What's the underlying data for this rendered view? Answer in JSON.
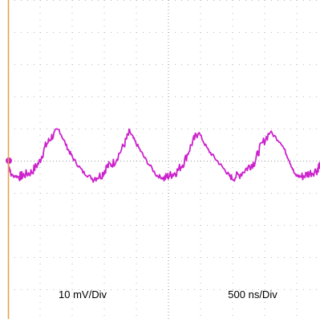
{
  "colors": {
    "trace": "#cc22cc",
    "grid": "#bbbbbb",
    "frame": "#e8a040",
    "background": "#ffffff"
  },
  "chart_data": {
    "type": "line",
    "title": "",
    "grid": true,
    "annotations": {
      "vertical_scale": "10 mV/Div",
      "horizontal_scale": "500 ns/Div"
    },
    "xlim_div": [
      0,
      5
    ],
    "ylim_div": [
      -5,
      5
    ],
    "x_div": [
      0.0,
      0.05,
      0.18,
      0.25,
      0.38,
      0.5,
      0.6,
      0.7,
      0.82,
      0.95,
      1.05,
      1.2,
      1.35,
      1.5,
      1.58,
      1.7,
      1.85,
      1.95,
      2.05,
      2.2,
      2.38,
      2.5,
      2.6,
      2.7,
      2.82,
      2.95,
      3.05,
      3.2,
      3.35,
      3.5,
      3.58,
      3.7,
      3.85,
      3.95,
      4.05,
      4.2,
      4.38,
      4.5,
      4.6,
      4.7,
      4.82,
      4.95,
      5.0
    ],
    "y_div": [
      -0.05,
      -0.45,
      -0.5,
      -0.45,
      -0.35,
      -0.05,
      0.45,
      0.75,
      0.95,
      0.4,
      0.05,
      -0.35,
      -0.55,
      -0.45,
      -0.2,
      -0.05,
      0.45,
      0.9,
      0.55,
      0.05,
      -0.45,
      -0.55,
      -0.45,
      -0.35,
      -0.05,
      0.55,
      0.9,
      0.35,
      0.0,
      -0.35,
      -0.55,
      -0.45,
      -0.2,
      -0.05,
      0.45,
      0.9,
      0.55,
      0.05,
      -0.45,
      -0.5,
      -0.4,
      -0.3,
      -0.1
    ]
  }
}
